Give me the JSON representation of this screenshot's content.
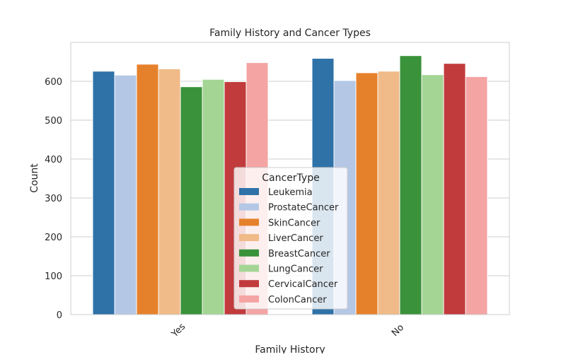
{
  "chart_data": {
    "type": "bar",
    "title": "Family History and Cancer Types",
    "xlabel": "Family History",
    "ylabel": "Count",
    "categories": [
      "Yes",
      "No"
    ],
    "ylim": [
      0,
      700
    ],
    "yticks": [
      0,
      100,
      200,
      300,
      400,
      500,
      600
    ],
    "grid": true,
    "legend": {
      "title": "CancerType",
      "placement": "lower-center"
    },
    "series": [
      {
        "name": "Leukemia",
        "color": "#2e72a8",
        "values": [
          626,
          659
        ]
      },
      {
        "name": "ProstateCancer",
        "color": "#b4c8e6",
        "values": [
          616,
          602
        ]
      },
      {
        "name": "SkinCancer",
        "color": "#e6812b",
        "values": [
          644,
          622
        ]
      },
      {
        "name": "LiverCancer",
        "color": "#f0bb88",
        "values": [
          632,
          626
        ]
      },
      {
        "name": "BreastCancer",
        "color": "#3a923a",
        "values": [
          586,
          666
        ]
      },
      {
        "name": "LungCancer",
        "color": "#a4d595",
        "values": [
          605,
          617
        ]
      },
      {
        "name": "CervicalCancer",
        "color": "#c13b3d",
        "values": [
          599,
          646
        ]
      },
      {
        "name": "ColonCancer",
        "color": "#f4a4a3",
        "values": [
          648,
          612
        ]
      }
    ]
  }
}
